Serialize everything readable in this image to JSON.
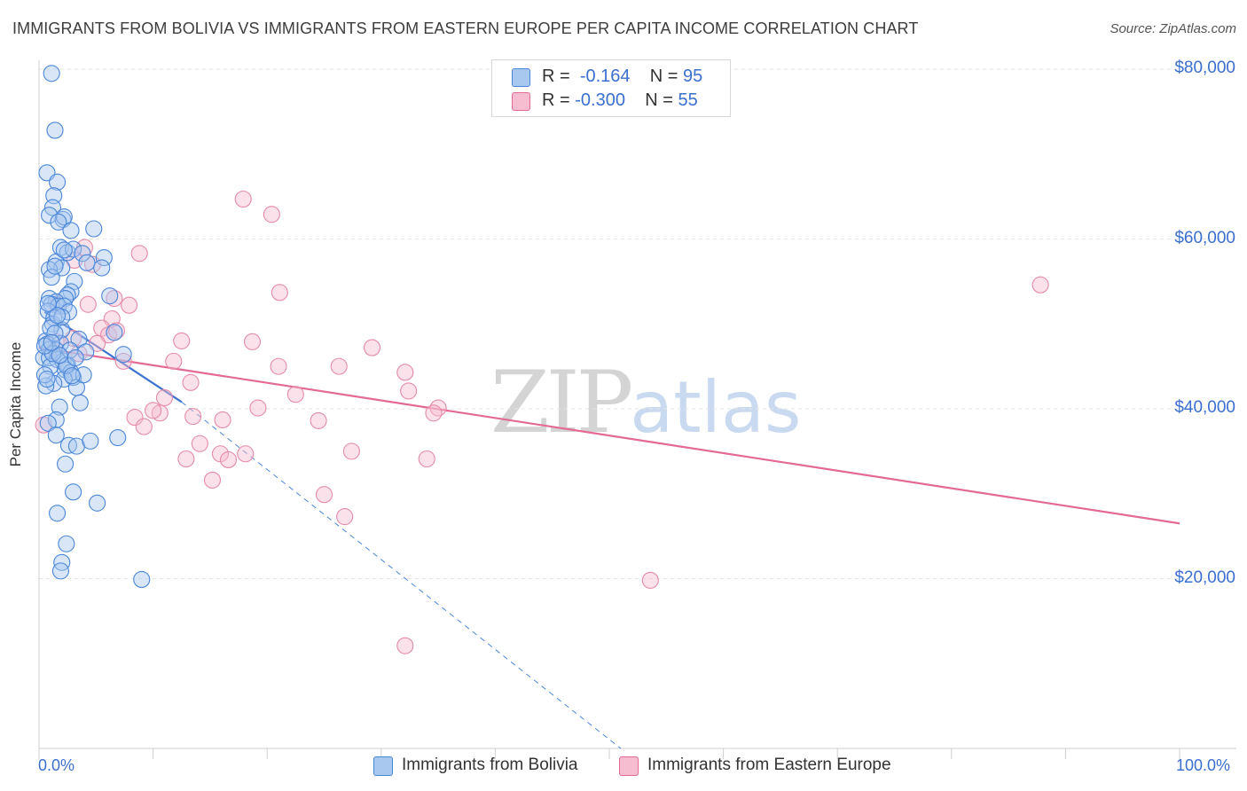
{
  "title": "IMMIGRANTS FROM BOLIVIA VS IMMIGRANTS FROM EASTERN EUROPE PER CAPITA INCOME CORRELATION CHART",
  "source": "Source: ZipAtlas.com",
  "watermark": {
    "zip": "ZIP",
    "atlas": "atlas"
  },
  "colors": {
    "blue": "#4a86d8",
    "blue_fill": "#a9c8f0",
    "pink": "#e36a94",
    "pink_fill": "#f6bccf",
    "axis_text": "#3a6fd0"
  },
  "legend": {
    "rows": [
      {
        "r_label": "R =",
        "r_value": "-0.164",
        "n_label": "N =",
        "n_value": "95"
      },
      {
        "r_label": "R =",
        "r_value": "-0.300",
        "n_label": "N =",
        "n_value": "55"
      }
    ]
  },
  "bottom_legend": [
    "Immigrants from Bolivia",
    "Immigrants from Eastern Europe"
  ],
  "chart_data": {
    "type": "scatter",
    "title": "IMMIGRANTS FROM BOLIVIA VS IMMIGRANTS FROM EASTERN EUROPE PER CAPITA INCOME CORRELATION CHART",
    "xlabel": "",
    "ylabel": "Per Capita Income",
    "xlim": [
      0,
      100
    ],
    "ylim": [
      0,
      80000
    ],
    "x_tick_labels": [
      "0.0%",
      "100.0%"
    ],
    "y_ticks": [
      20000,
      40000,
      60000,
      80000
    ],
    "y_tick_labels": [
      "$20,000",
      "$40,000",
      "$60,000",
      "$80,000"
    ],
    "grid": true,
    "series": [
      {
        "name": "Immigrants from Bolivia",
        "r": -0.164,
        "n": 95,
        "trend": {
          "x": [
            0.5,
            12.5
          ],
          "y": [
            51400,
            40800
          ],
          "dashed_extension_to": [
            51,
            0
          ]
        },
        "points": [
          [
            1.1,
            79500
          ],
          [
            1.4,
            72800
          ],
          [
            0.7,
            67800
          ],
          [
            1.6,
            66700
          ],
          [
            1.3,
            65100
          ],
          [
            1.2,
            63700
          ],
          [
            0.9,
            62800
          ],
          [
            2.1,
            62300
          ],
          [
            2.2,
            62600
          ],
          [
            1.7,
            62000
          ],
          [
            4.8,
            61200
          ],
          [
            2.8,
            61000
          ],
          [
            1.9,
            59000
          ],
          [
            2.5,
            58400
          ],
          [
            3.0,
            58800
          ],
          [
            3.8,
            58300
          ],
          [
            5.7,
            57800
          ],
          [
            1.5,
            57300
          ],
          [
            4.2,
            57200
          ],
          [
            2.0,
            56600
          ],
          [
            5.5,
            56600
          ],
          [
            0.9,
            56400
          ],
          [
            1.1,
            55500
          ],
          [
            3.1,
            55000
          ],
          [
            6.2,
            53300
          ],
          [
            2.8,
            53800
          ],
          [
            2.5,
            53400
          ],
          [
            0.9,
            53000
          ],
          [
            2.3,
            53000
          ],
          [
            1.5,
            52600
          ],
          [
            1.1,
            52300
          ],
          [
            1.7,
            52100
          ],
          [
            2.2,
            52100
          ],
          [
            0.8,
            51500
          ],
          [
            2.6,
            51400
          ],
          [
            1.3,
            50700
          ],
          [
            1.2,
            50000
          ],
          [
            2.0,
            49300
          ],
          [
            6.6,
            49000
          ],
          [
            3.5,
            48200
          ],
          [
            0.6,
            48000
          ],
          [
            0.7,
            47600
          ],
          [
            1.9,
            47700
          ],
          [
            0.9,
            47000
          ],
          [
            1.5,
            46900
          ],
          [
            4.1,
            46700
          ],
          [
            7.4,
            46400
          ],
          [
            0.4,
            46000
          ],
          [
            0.9,
            46000
          ],
          [
            1.6,
            45800
          ],
          [
            2.1,
            45600
          ],
          [
            2.5,
            45200
          ],
          [
            1.0,
            45000
          ],
          [
            2.3,
            44600
          ],
          [
            2.8,
            44300
          ],
          [
            3.0,
            43700
          ],
          [
            2.2,
            43500
          ],
          [
            1.3,
            43000
          ],
          [
            0.6,
            42700
          ],
          [
            3.3,
            42500
          ],
          [
            1.8,
            40200
          ],
          [
            3.6,
            40700
          ],
          [
            1.5,
            38700
          ],
          [
            0.8,
            38300
          ],
          [
            2.6,
            35700
          ],
          [
            1.5,
            36900
          ],
          [
            3.3,
            35600
          ],
          [
            4.5,
            36200
          ],
          [
            6.9,
            36600
          ],
          [
            2.3,
            33500
          ],
          [
            3.0,
            30200
          ],
          [
            5.1,
            28900
          ],
          [
            1.6,
            27700
          ],
          [
            2.4,
            24100
          ],
          [
            2.0,
            21900
          ],
          [
            1.9,
            20900
          ],
          [
            9.0,
            19900
          ],
          [
            0.5,
            44000
          ],
          [
            1.0,
            49500
          ],
          [
            2.7,
            46900
          ],
          [
            3.9,
            44000
          ],
          [
            1.4,
            48900
          ],
          [
            0.7,
            43500
          ],
          [
            2.0,
            50800
          ],
          [
            1.2,
            46500
          ],
          [
            2.4,
            45100
          ],
          [
            1.8,
            46300
          ],
          [
            0.5,
            47400
          ],
          [
            3.2,
            46000
          ],
          [
            1.1,
            47800
          ],
          [
            2.9,
            43900
          ],
          [
            1.6,
            51000
          ],
          [
            0.8,
            52400
          ],
          [
            2.2,
            58700
          ],
          [
            1.4,
            56800
          ]
        ]
      },
      {
        "name": "Immigrants from Eastern Europe",
        "r": -0.3,
        "n": 55,
        "trend": {
          "x": [
            0,
            100
          ],
          "y": [
            47200,
            26500
          ]
        },
        "points": [
          [
            0.4,
            38100
          ],
          [
            17.9,
            64700
          ],
          [
            20.4,
            62900
          ],
          [
            4.0,
            59000
          ],
          [
            8.8,
            58300
          ],
          [
            3.1,
            57500
          ],
          [
            4.7,
            57000
          ],
          [
            21.1,
            53700
          ],
          [
            6.6,
            53000
          ],
          [
            4.3,
            52300
          ],
          [
            7.9,
            52200
          ],
          [
            1.6,
            52300
          ],
          [
            6.4,
            50600
          ],
          [
            5.5,
            49500
          ],
          [
            6.1,
            48700
          ],
          [
            3.0,
            48300
          ],
          [
            12.5,
            48000
          ],
          [
            18.7,
            47900
          ],
          [
            5.1,
            47700
          ],
          [
            29.2,
            47200
          ],
          [
            7.4,
            45600
          ],
          [
            11.8,
            45600
          ],
          [
            21.0,
            45000
          ],
          [
            26.3,
            45000
          ],
          [
            32.1,
            44300
          ],
          [
            13.3,
            43100
          ],
          [
            22.5,
            41700
          ],
          [
            11.0,
            41300
          ],
          [
            32.4,
            42100
          ],
          [
            19.2,
            40100
          ],
          [
            35.0,
            40100
          ],
          [
            34.6,
            39500
          ],
          [
            8.4,
            39000
          ],
          [
            10.6,
            39500
          ],
          [
            13.5,
            39100
          ],
          [
            16.1,
            38700
          ],
          [
            24.5,
            38600
          ],
          [
            9.2,
            37900
          ],
          [
            14.1,
            35900
          ],
          [
            15.9,
            34700
          ],
          [
            18.1,
            34700
          ],
          [
            27.4,
            35000
          ],
          [
            12.9,
            34100
          ],
          [
            16.6,
            34000
          ],
          [
            34.0,
            34100
          ],
          [
            15.2,
            31600
          ],
          [
            25.0,
            29900
          ],
          [
            26.8,
            27300
          ],
          [
            53.6,
            19800
          ],
          [
            32.1,
            12100
          ],
          [
            87.8,
            54600
          ],
          [
            10.0,
            39800
          ],
          [
            6.8,
            49200
          ],
          [
            3.5,
            46500
          ],
          [
            1.5,
            47900
          ]
        ]
      }
    ]
  }
}
